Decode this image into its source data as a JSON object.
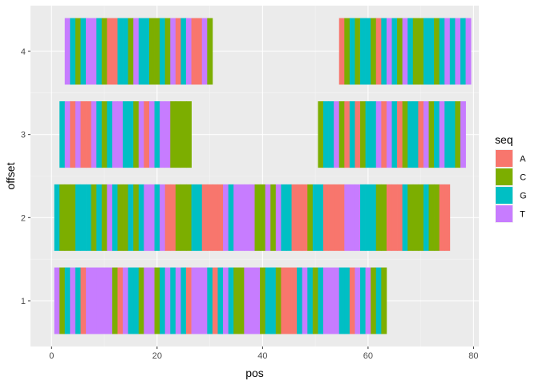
{
  "chart_data": {
    "type": "bar",
    "xlabel": "pos",
    "ylabel": "offset",
    "xlim": [
      -4,
      81
    ],
    "ylim": [
      0.45,
      4.55
    ],
    "x_ticks": [
      0,
      20,
      40,
      60,
      80
    ],
    "y_ticks": [
      1,
      2,
      3,
      4
    ],
    "grid": true,
    "legend": {
      "title": "seq",
      "position": "right",
      "entries": [
        {
          "key": "A",
          "label": "A",
          "color": "#F8766D"
        },
        {
          "key": "C",
          "label": "C",
          "color": "#7CAE00"
        },
        {
          "key": "G",
          "label": "G",
          "color": "#00BFC4"
        },
        {
          "key": "T",
          "label": "T",
          "color": "#C77CFF"
        }
      ]
    },
    "tile_height": 0.8,
    "rows": [
      {
        "offset": 1,
        "start": 1,
        "seq": "TCGTGATTTTTCATGGCTTCGTGTGATTTGAGTGCCTTTCGGT"
      },
      {
        "offset": 1,
        "start": 42,
        "seq": "GCAAAGTGCGTTTGGATGTCGC"
      },
      {
        "offset": 2,
        "start": 1,
        "seq": "GCCCGGGCGCTGCCGCGTTGTAACCCGGAAAATGTTTTCCTCTGGAAACGGAAAATTTGGGCCAAAGCCCGCCAA"
      },
      {
        "offset": 3,
        "start": 2,
        "seq": "GTATAATGCGTTGGCTATGTTCCCC"
      },
      {
        "offset": 3,
        "start": 51,
        "seq": "CGGTCAGACGGTATGACGGATCGTGGCT"
      },
      {
        "offset": 4,
        "start": 3,
        "seq": "TGCGTTGCAAGGCTGGCCGCTAGTAATC"
      },
      {
        "offset": 4,
        "start": 55,
        "seq": "ACGCGGCAGTGCTGCCGGCGTGTGT"
      }
    ]
  }
}
